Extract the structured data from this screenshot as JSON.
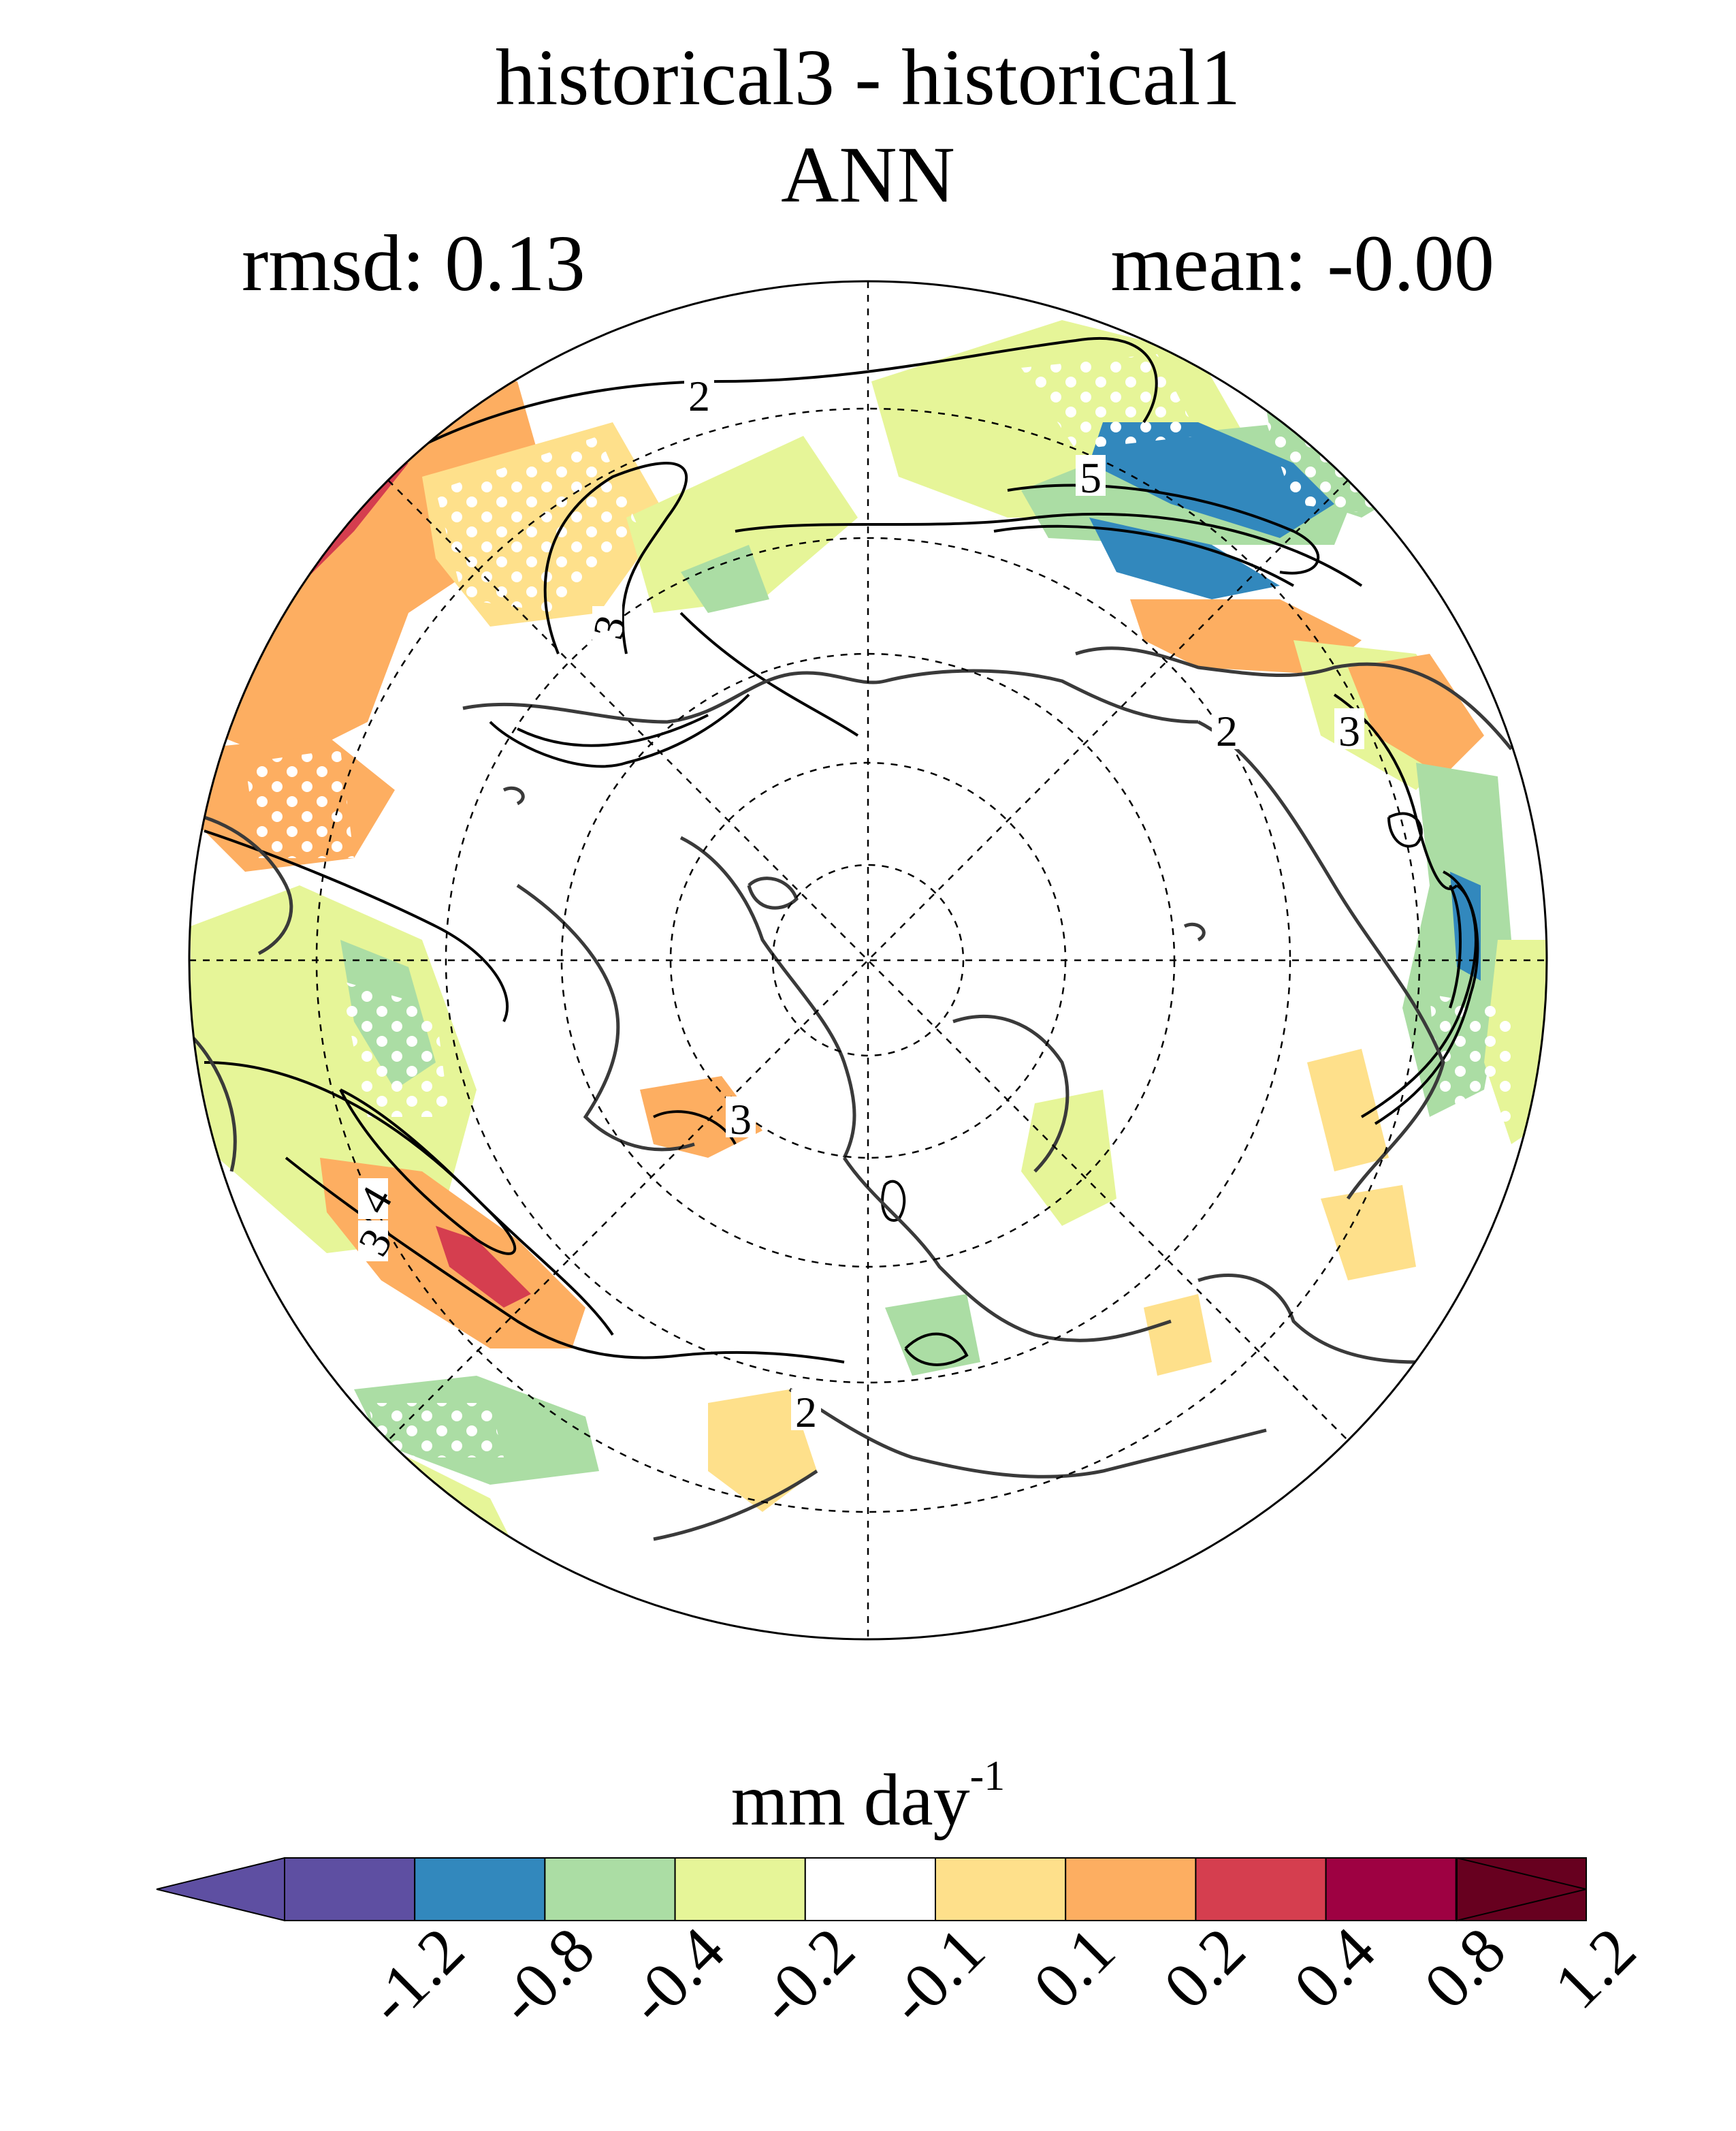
{
  "title": {
    "line1": "historical3 - historical1",
    "line2": "ANN",
    "rmsd": "rmsd: 0.13",
    "mean": "mean: -0.00"
  },
  "map": {
    "projection": "north polar stereographic",
    "contour_labels": [
      "2",
      "3",
      "5",
      "2",
      "3",
      "3",
      "4",
      "3",
      "2"
    ]
  },
  "colorbar": {
    "units": "mm day",
    "units_exponent": "-1",
    "tick_labels": [
      "-1.2",
      "-0.8",
      "-0.4",
      "-0.2",
      "-0.1",
      "0.1",
      "0.2",
      "0.4",
      "0.8",
      "1.2"
    ],
    "colors": [
      "#5e4fa2",
      "#3288bd",
      "#abdda4",
      "#e6f598",
      "#ffffff",
      "#fee08b",
      "#fdae61",
      "#d53e4f",
      "#9e0142",
      "#67001f"
    ],
    "under_color": "#5e4fa2",
    "over_color": "#67001f"
  },
  "palette": {
    "land_outline": "#3a3a3a",
    "contour": "#000000",
    "stipple": "#ffffff"
  }
}
